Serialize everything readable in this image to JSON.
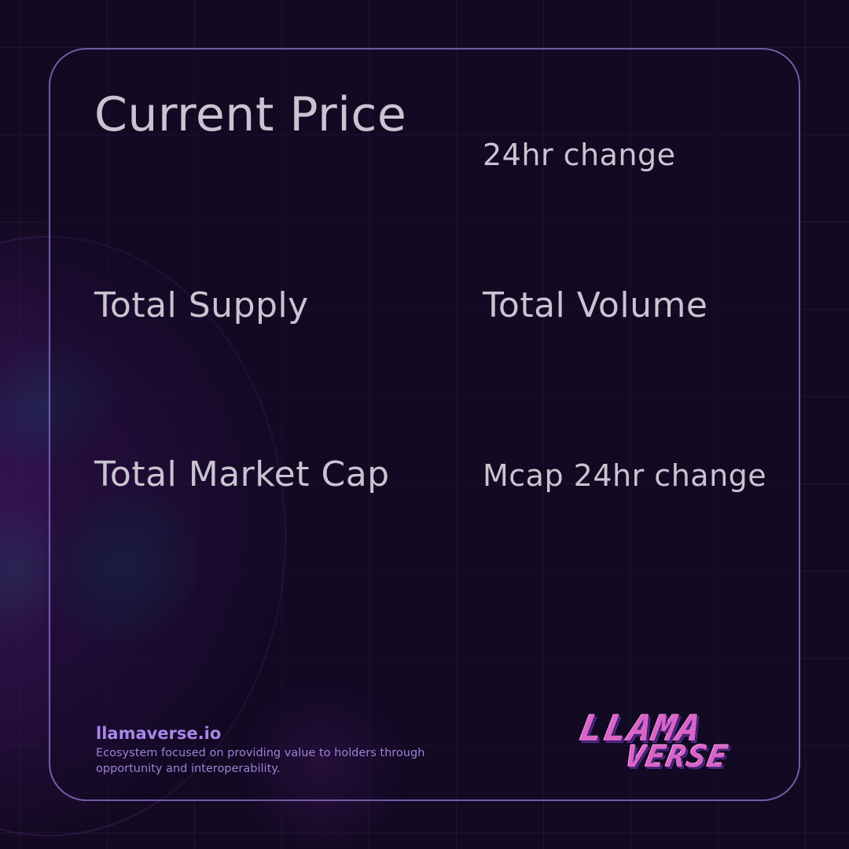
{
  "stats": {
    "current_price_label": "Current Price",
    "change_24hr_label": "24hr change",
    "total_supply_label": "Total Supply",
    "total_volume_label": "Total Volume",
    "market_cap_label": "Total Market Cap",
    "mcap_change_label": "Mcap 24hr change"
  },
  "footer": {
    "site": "llamaverse.io",
    "tagline": "Ecosystem focused on providing value to holders through opportunity and interoperability."
  },
  "logo": {
    "line1": "LLAMA",
    "line2": "VERSE"
  },
  "colors": {
    "background": "#130a22",
    "card_border": "#9678d2",
    "label_text": "#c9c4cf",
    "accent": "#a886e8",
    "logo_pink": "#d964c6"
  }
}
